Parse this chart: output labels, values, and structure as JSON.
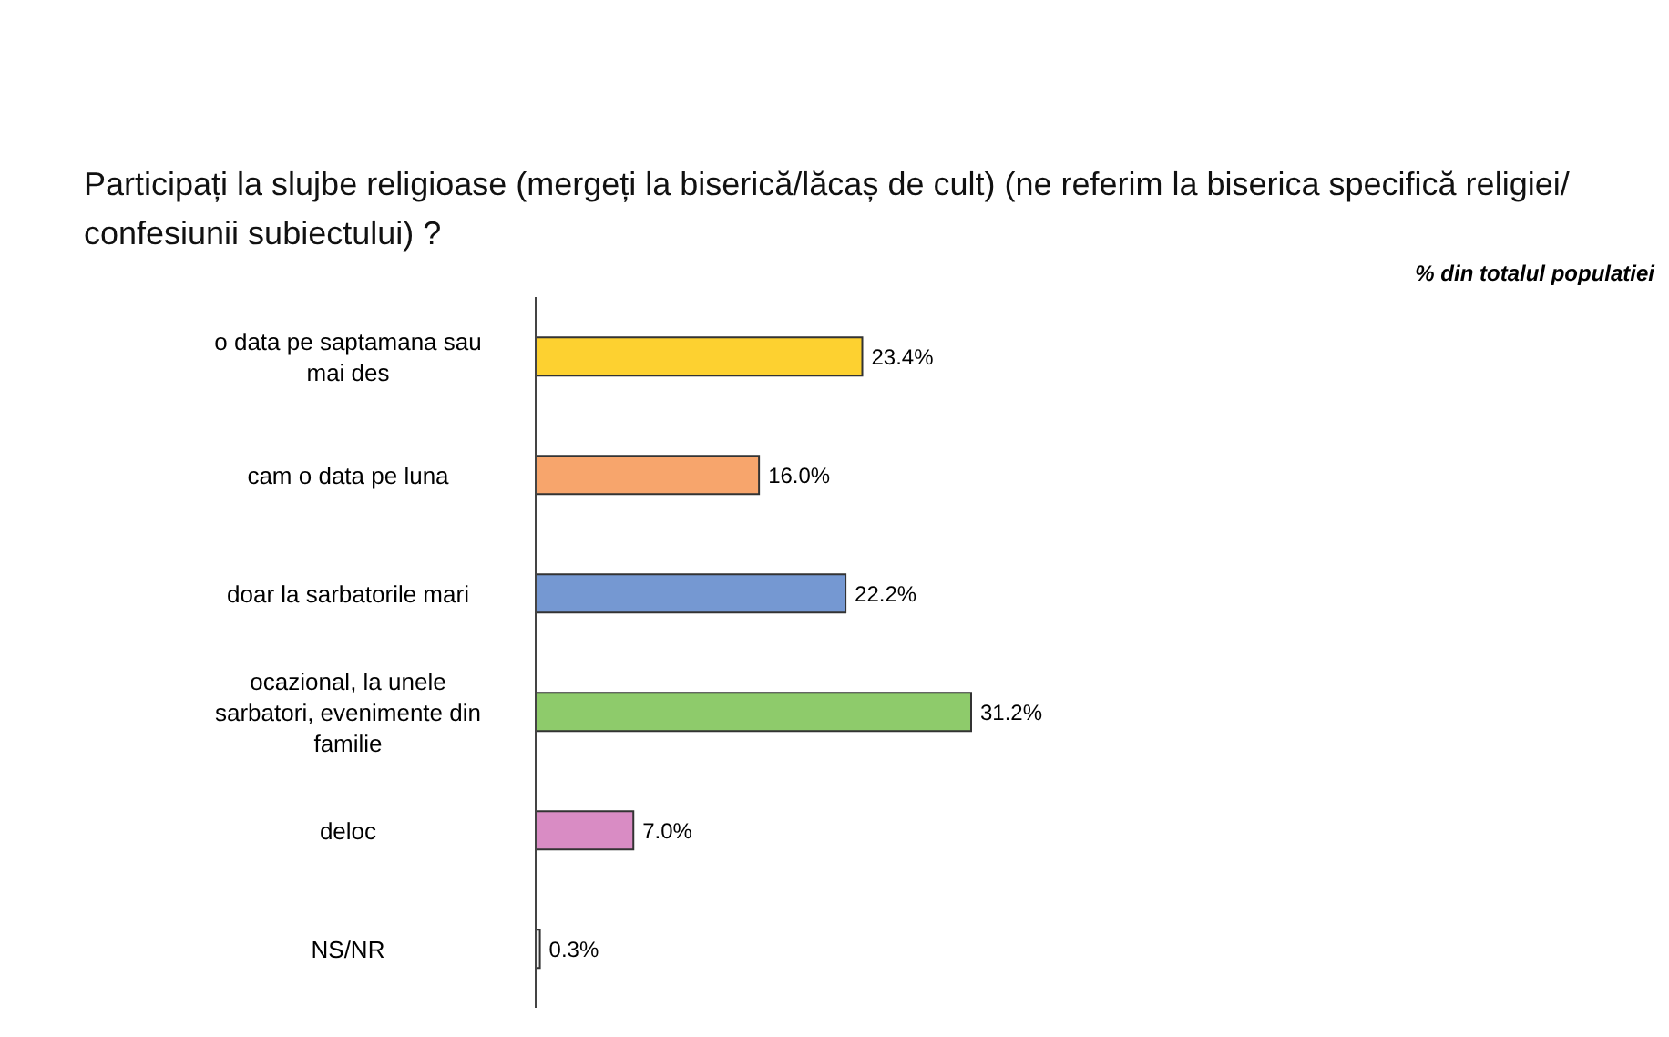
{
  "chart_data": {
    "type": "bar",
    "orientation": "horizontal",
    "title": "Participați la slujbe religioase (mergeți la biserică/lăcaș de cult) (ne referim la biserica specifică religiei/ confesiunii subiectului) ?",
    "annotations": [
      "% din totalul populatiei"
    ],
    "categories": [
      "o data pe saptamana sau mai des",
      "cam o data pe luna",
      "doar la sarbatorile mari",
      "ocazional, la unele sarbatori, evenimente din familie",
      "deloc",
      "NS/NR"
    ],
    "values": [
      23.4,
      16.0,
      22.2,
      31.2,
      7.0,
      0.3
    ],
    "value_labels": [
      "23.4%",
      "16.0%",
      "22.2%",
      "31.2%",
      "7.0%",
      "0.3%"
    ],
    "colors": [
      "#fdd130",
      "#f7a56c",
      "#7598d2",
      "#8ecb6b",
      "#d98cc4",
      "#f2f2f2"
    ]
  }
}
